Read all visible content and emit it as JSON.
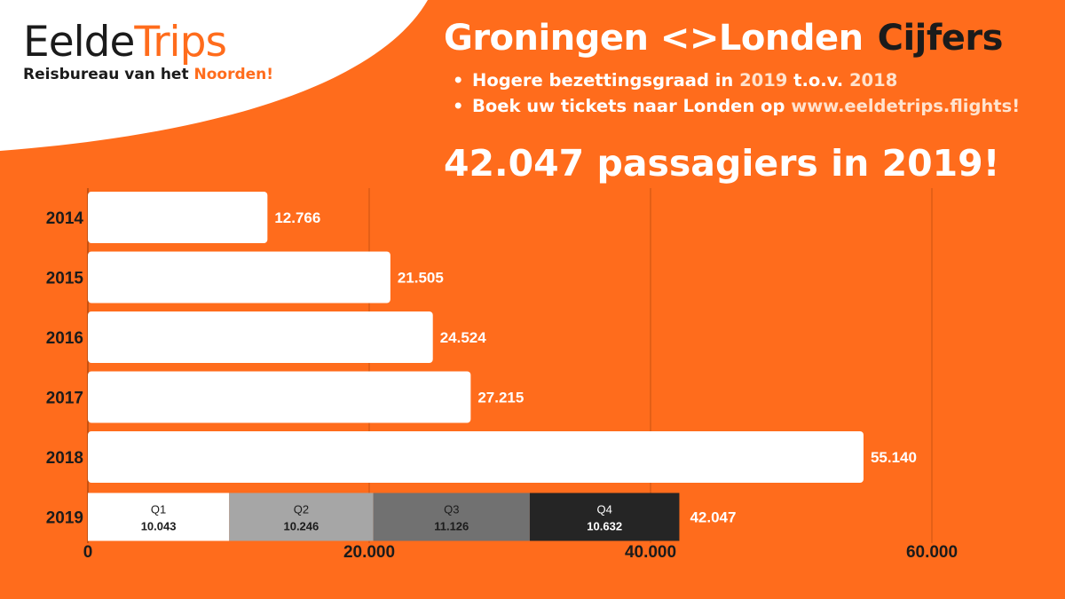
{
  "logo": {
    "name_part1": "Eelde",
    "name_part2": "Trips",
    "tagline_part1": "Reisbureau van het ",
    "tagline_part2": "Noorden!"
  },
  "header": {
    "title_main": "Groningen <>Londen",
    "title_accent": "Cijfers",
    "bullets": [
      {
        "pre": "Hogere bezettingsgraad in ",
        "hl1": "2019",
        "mid": " t.o.v. ",
        "hl2": "2018"
      },
      {
        "pre": "Boek uw tickets naar Londen op ",
        "hl1": "www.eeldetrips.flights!"
      }
    ],
    "headline": "42.047 passagiers in 2019!"
  },
  "colors": {
    "background": "#ff6c1c",
    "bar": "#ffffff",
    "text_dark": "#1b1b1b",
    "quarters": [
      "#ffffff",
      "#a6a6a6",
      "#717171",
      "#252525"
    ]
  },
  "chart_data": {
    "type": "bar",
    "orientation": "horizontal",
    "categories": [
      "2014",
      "2015",
      "2016",
      "2017",
      "2018",
      "2019"
    ],
    "values": [
      12766,
      21505,
      24524,
      27215,
      55140,
      42047
    ],
    "value_labels": [
      "12.766",
      "21.505",
      "24.524",
      "27.215",
      "55.140",
      "42.047"
    ],
    "stacked_2019": [
      {
        "name": "Q1",
        "value": 10043,
        "label": "10.043"
      },
      {
        "name": "Q2",
        "value": 10246,
        "label": "10.246"
      },
      {
        "name": "Q3",
        "value": 11126,
        "label": "11.126"
      },
      {
        "name": "Q4",
        "value": 10632,
        "label": "10.632"
      }
    ],
    "xlim": [
      0,
      60000
    ],
    "x_ticks": [
      0,
      20000,
      40000,
      60000
    ],
    "x_tick_labels": [
      "0",
      "20.000",
      "40.000",
      "60.000"
    ],
    "grid": true,
    "title": "",
    "xlabel": "",
    "ylabel": ""
  }
}
